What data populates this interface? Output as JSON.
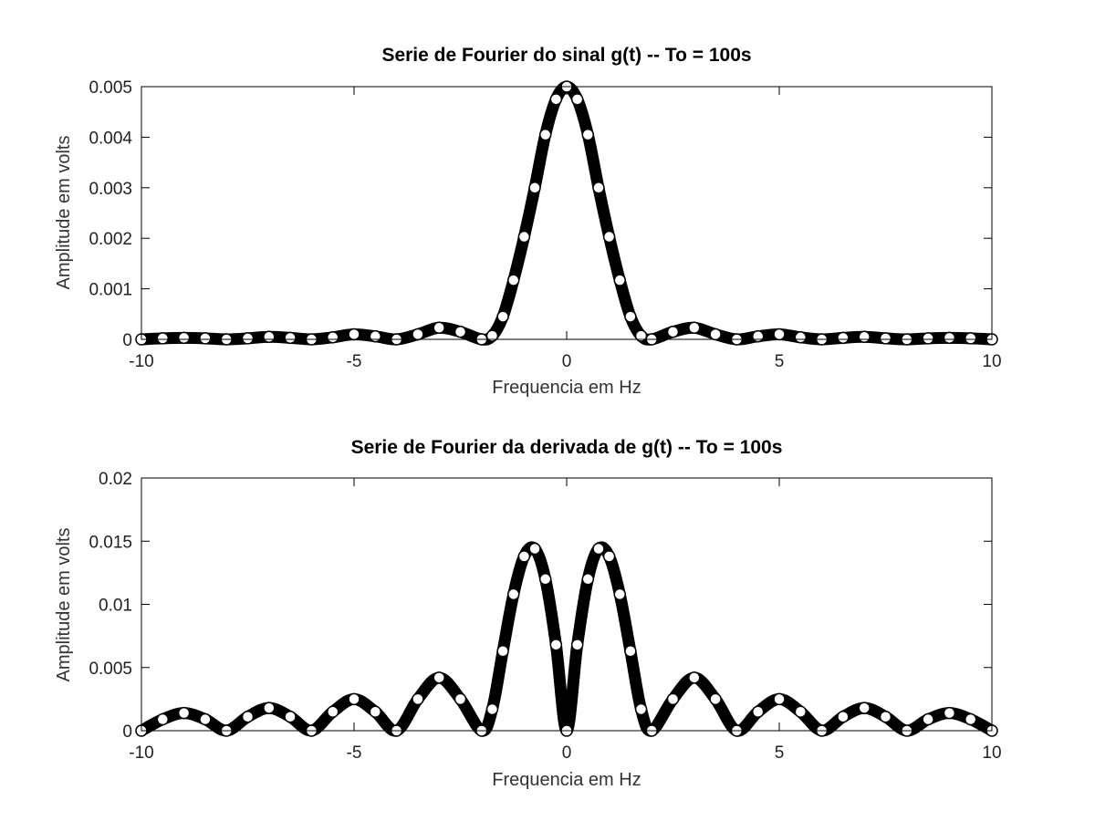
{
  "chart_data": [
    {
      "type": "scatter",
      "title": "Serie de Fourier do sinal g(t) -- To = 100s",
      "xlabel": "Frequencia em Hz",
      "ylabel": "Amplitude em  volts",
      "xlim": [
        -10,
        10
      ],
      "ylim": [
        0,
        0.005
      ],
      "xticks": [
        -10,
        -5,
        0,
        5,
        10
      ],
      "xtick_labels": [
        "-10",
        "-5",
        "0",
        "5",
        "10"
      ],
      "yticks": [
        0,
        0.001,
        0.002,
        0.003,
        0.004,
        0.005
      ],
      "ytick_labels": [
        "0",
        "0.001",
        "0.002",
        "0.003",
        "0.004",
        "0.005"
      ],
      "grid": false,
      "marker": "circle",
      "color": "#000000",
      "series": [
        {
          "x": [
            -10,
            -9.5,
            -9,
            -8.5,
            -8,
            -7.5,
            -7,
            -6.5,
            -6,
            -5.5,
            -5,
            -4.5,
            -4,
            -3.5,
            -3,
            -2.5,
            -2,
            -1.75,
            -1.5,
            -1.25,
            -1,
            -0.75,
            -0.5,
            -0.25,
            0,
            0.25,
            0.5,
            0.75,
            1,
            1.25,
            1.5,
            1.75,
            2,
            2.5,
            3,
            3.5,
            4,
            4.5,
            5,
            5.5,
            6,
            6.5,
            7,
            7.5,
            8,
            8.5,
            9,
            9.5,
            10
          ],
          "y": [
            0,
            2e-05,
            3e-05,
            2e-05,
            0,
            2e-05,
            5e-05,
            3e-05,
            0,
            4e-05,
            0.0001,
            6e-05,
            0,
            0.0001,
            0.00023,
            0.00015,
            0,
            7e-05,
            0.00045,
            0.00117,
            0.00203,
            0.003,
            0.00405,
            0.00475,
            0.005,
            0.00475,
            0.00405,
            0.003,
            0.00203,
            0.00117,
            0.00045,
            7e-05,
            0,
            0.00015,
            0.00023,
            0.0001,
            0,
            6e-05,
            0.0001,
            4e-05,
            0,
            3e-05,
            5e-05,
            2e-05,
            0,
            2e-05,
            3e-05,
            2e-05,
            0
          ]
        }
      ]
    },
    {
      "type": "scatter",
      "title": "Serie de Fourier da derivada de g(t) -- To = 100s",
      "xlabel": "Frequencia em Hz",
      "ylabel": "Amplitude em  volts",
      "xlim": [
        -10,
        10
      ],
      "ylim": [
        0,
        0.02
      ],
      "xticks": [
        -10,
        -5,
        0,
        5,
        10
      ],
      "xtick_labels": [
        "-10",
        "-5",
        "0",
        "5",
        "10"
      ],
      "yticks": [
        0,
        0.005,
        0.01,
        0.015,
        0.02
      ],
      "ytick_labels": [
        "0",
        "0.005",
        "0.01",
        "0.015",
        "0.02"
      ],
      "grid": false,
      "marker": "circle",
      "color": "#000000",
      "series": [
        {
          "x": [
            -10,
            -9.5,
            -9,
            -8.5,
            -8,
            -7.5,
            -7,
            -6.5,
            -6,
            -5.5,
            -5,
            -4.5,
            -4,
            -3.5,
            -3,
            -2.5,
            -2,
            -1.75,
            -1.5,
            -1.25,
            -1,
            -0.75,
            -0.5,
            -0.25,
            0,
            0.25,
            0.5,
            0.75,
            1,
            1.25,
            1.5,
            1.75,
            2,
            2.5,
            3,
            3.5,
            4,
            4.5,
            5,
            5.5,
            6,
            6.5,
            7,
            7.5,
            8,
            8.5,
            9,
            9.5,
            10
          ],
          "y": [
            0,
            0.0009,
            0.0014,
            0.0009,
            0,
            0.0011,
            0.0018,
            0.0011,
            0,
            0.0015,
            0.0025,
            0.0015,
            0,
            0.0025,
            0.0042,
            0.0025,
            0,
            0.0017,
            0.0063,
            0.0108,
            0.0138,
            0.0144,
            0.012,
            0.0068,
            0,
            0.0068,
            0.012,
            0.0144,
            0.0138,
            0.0108,
            0.0063,
            0.0017,
            0,
            0.0025,
            0.0042,
            0.0025,
            0,
            0.0015,
            0.0025,
            0.0015,
            0,
            0.0011,
            0.0018,
            0.0011,
            0,
            0.0009,
            0.0014,
            0.0009,
            0
          ]
        }
      ]
    }
  ]
}
